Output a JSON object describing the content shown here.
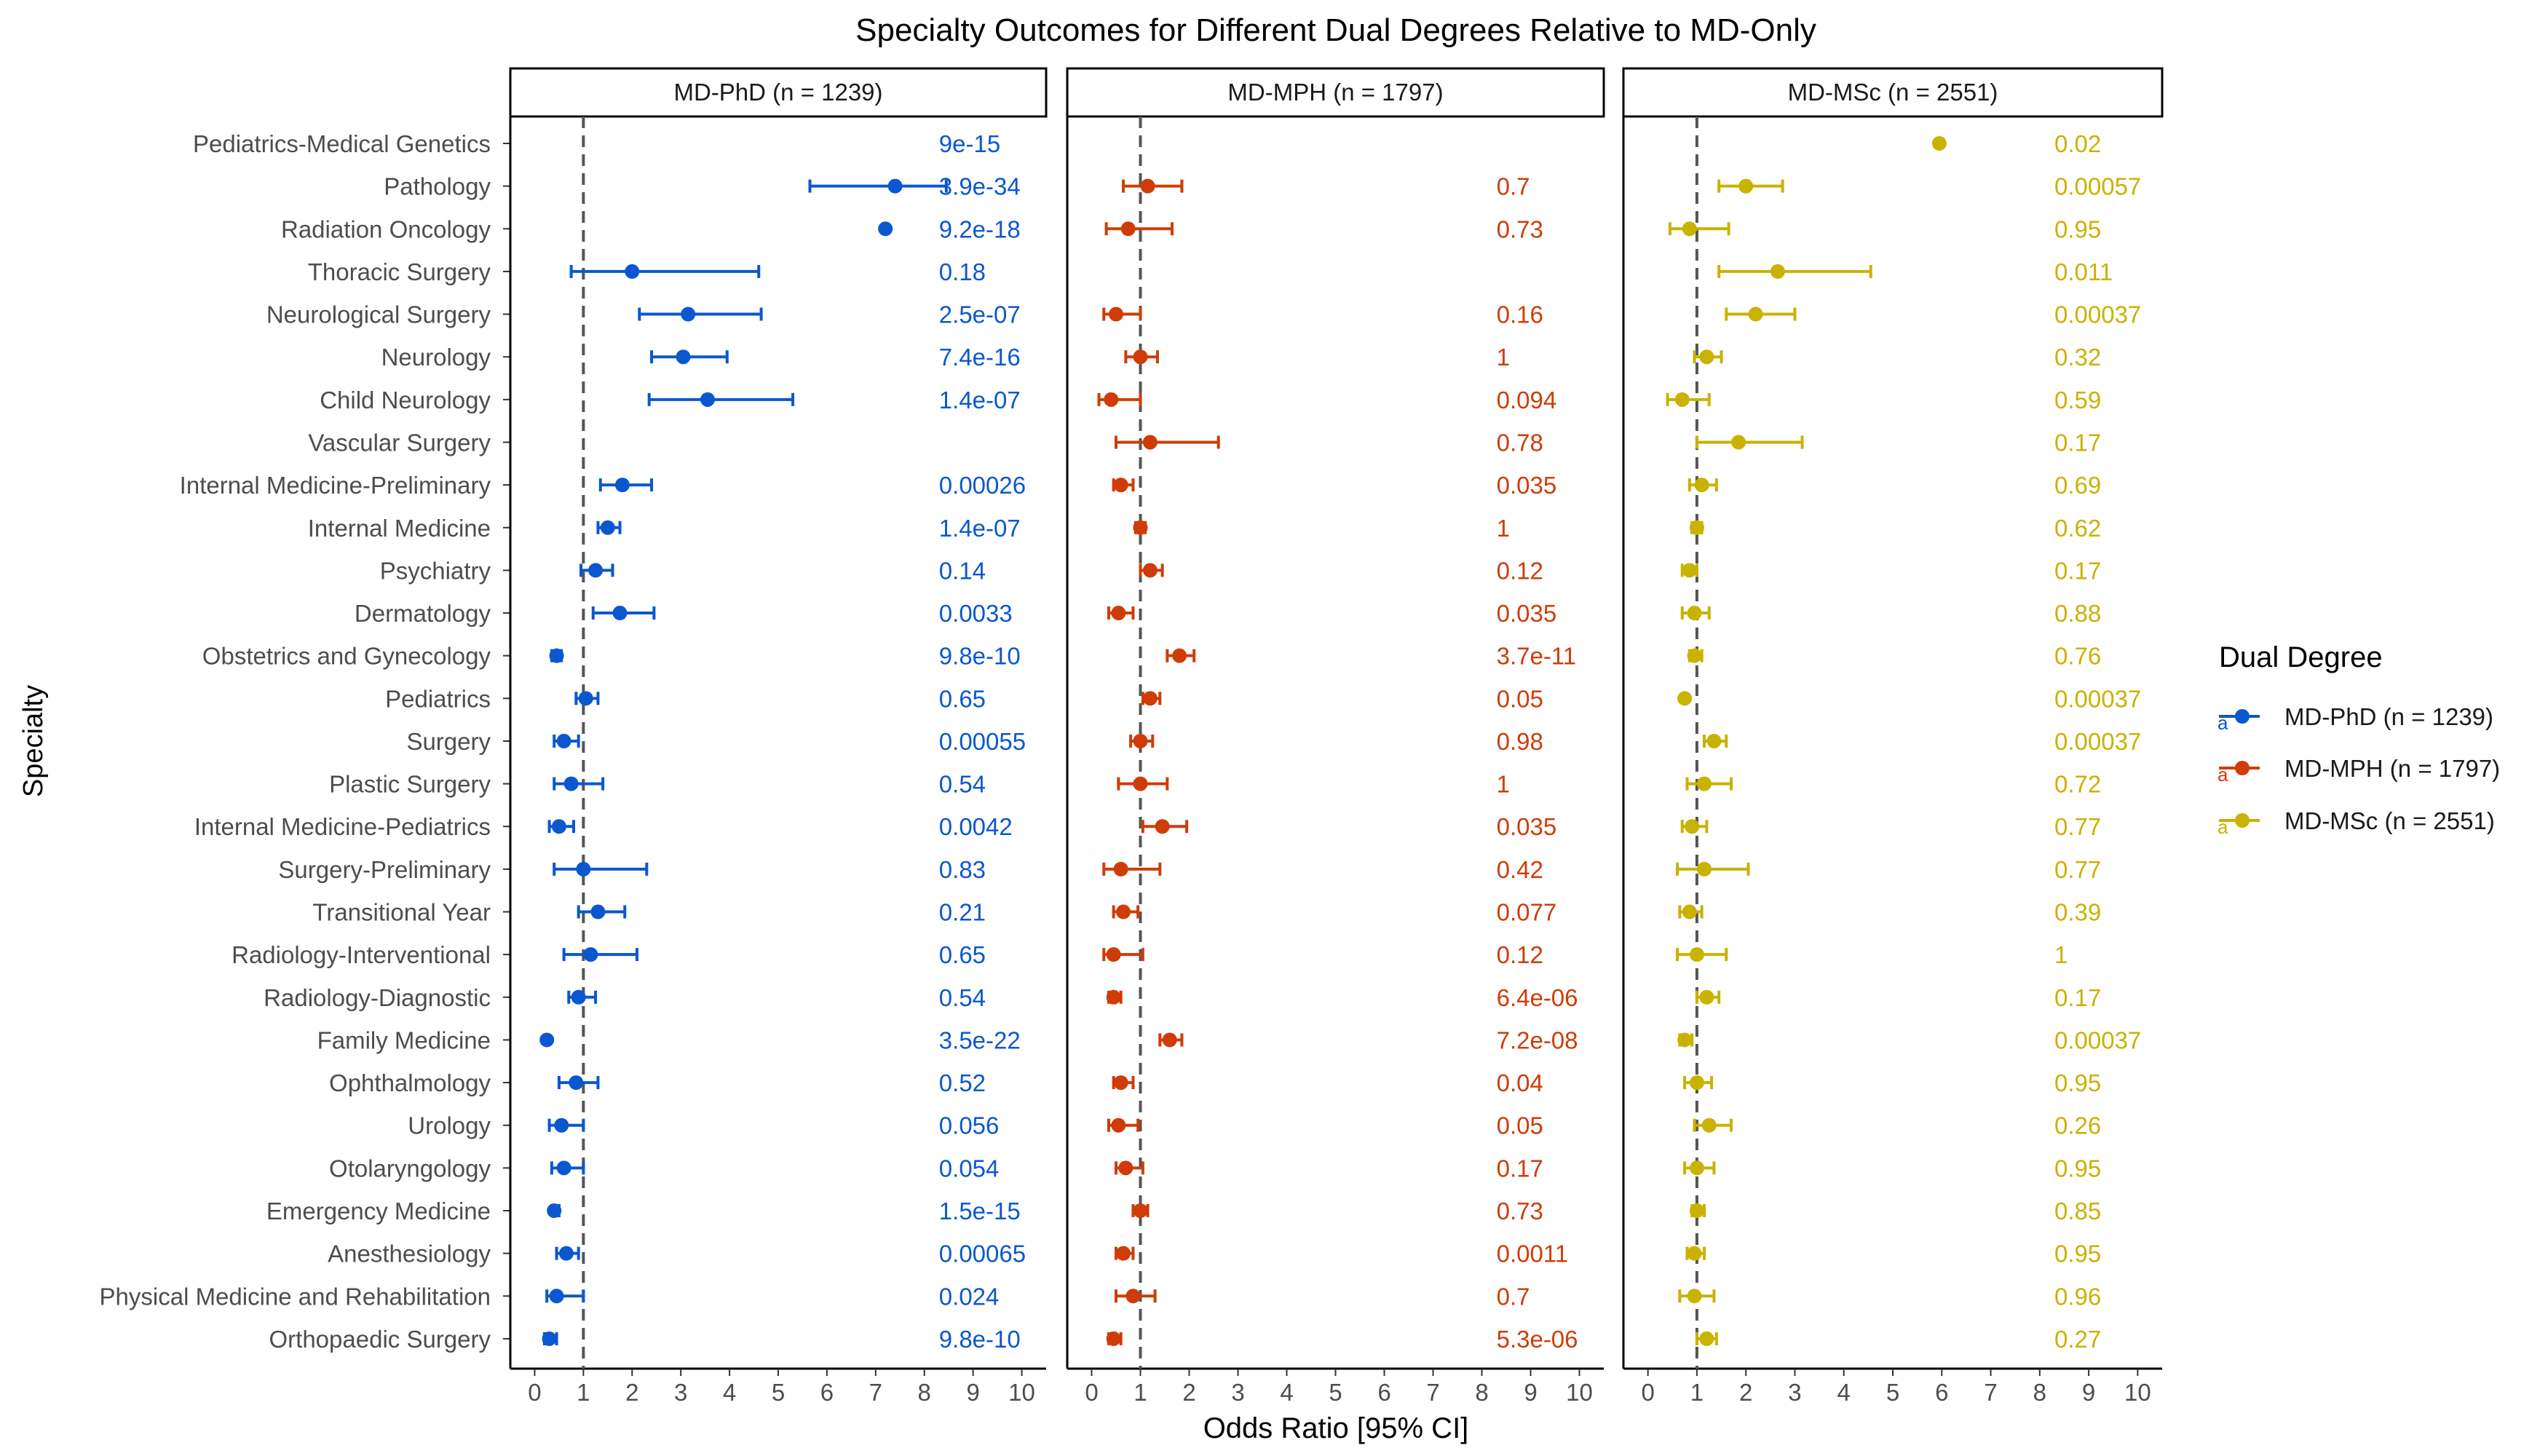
{
  "chart_data": {
    "type": "scatter",
    "subtype": "forest-plot",
    "title": "Specialty Outcomes for Different Dual Degrees Relative to MD-Only",
    "xlabel": "Odds Ratio [95% CI]",
    "ylabel": "Specialty",
    "xlim": [
      -0.5,
      10.5
    ],
    "x_ticks": [
      0,
      1,
      2,
      3,
      4,
      5,
      6,
      7,
      8,
      9,
      10
    ],
    "reference_line": 1,
    "grid": false,
    "legend": {
      "title": "Dual Degree",
      "position": "right",
      "key_glyph": "a",
      "entries": [
        "MD-PhD (n = 1239)",
        "MD-MPH (n = 1797)",
        "MD-MSc (n = 2551)"
      ]
    },
    "categories": [
      "Pediatrics-Medical Genetics",
      "Pathology",
      "Radiation Oncology",
      "Thoracic Surgery",
      "Neurological Surgery",
      "Neurology",
      "Child Neurology",
      "Vascular Surgery",
      "Internal Medicine-Preliminary",
      "Internal Medicine",
      "Psychiatry",
      "Dermatology",
      "Obstetrics and Gynecology",
      "Pediatrics",
      "Surgery",
      "Plastic Surgery",
      "Internal Medicine-Pediatrics",
      "Surgery-Preliminary",
      "Transitional Year",
      "Radiology-Interventional",
      "Radiology-Diagnostic",
      "Family Medicine",
      "Ophthalmology",
      "Urology",
      "Otolaryngology",
      "Emergency Medicine",
      "Anesthesiology",
      "Physical Medicine and Rehabilitation",
      "Orthopaedic Surgery"
    ],
    "series": [
      {
        "name": "MD-PhD (n = 1239)",
        "color": "#0b57d0",
        "or": [
          null,
          7.4,
          7.2,
          2.0,
          3.15,
          3.05,
          3.55,
          null,
          1.8,
          1.5,
          1.25,
          1.75,
          0.45,
          1.05,
          0.6,
          0.75,
          0.5,
          1.0,
          1.3,
          1.15,
          0.9,
          0.25,
          0.85,
          0.55,
          0.6,
          0.4,
          0.65,
          0.45,
          0.3
        ],
        "lo": [
          null,
          5.65,
          null,
          0.75,
          2.15,
          2.4,
          2.35,
          null,
          1.35,
          1.3,
          0.95,
          1.2,
          0.35,
          0.85,
          0.4,
          0.4,
          0.3,
          0.4,
          0.9,
          0.6,
          0.7,
          null,
          0.5,
          0.3,
          0.35,
          0.35,
          0.45,
          0.25,
          0.2
        ],
        "hi": [
          null,
          8.45,
          null,
          4.6,
          4.65,
          3.95,
          5.3,
          null,
          2.4,
          1.75,
          1.6,
          2.45,
          0.55,
          1.3,
          0.9,
          1.4,
          0.8,
          2.3,
          1.85,
          2.1,
          1.25,
          null,
          1.3,
          1.0,
          1.0,
          0.5,
          0.9,
          1.0,
          0.45
        ],
        "p": [
          "9e-15",
          "3.9e-34",
          "9.2e-18",
          "0.18",
          "2.5e-07",
          "7.4e-16",
          "1.4e-07",
          "",
          "0.00026",
          "1.4e-07",
          "0.14",
          "0.0033",
          "9.8e-10",
          "0.65",
          "0.00055",
          "0.54",
          "0.0042",
          "0.83",
          "0.21",
          "0.65",
          "0.54",
          "3.5e-22",
          "0.52",
          "0.056",
          "0.054",
          "1.5e-15",
          "0.00065",
          "0.024",
          "9.8e-10"
        ]
      },
      {
        "name": "MD-MPH (n = 1797)",
        "color": "#cf3c07",
        "or": [
          null,
          1.15,
          0.75,
          null,
          0.5,
          1.0,
          0.4,
          1.2,
          0.6,
          1.0,
          1.2,
          0.55,
          1.8,
          1.2,
          1.0,
          1.0,
          1.45,
          0.6,
          0.65,
          0.45,
          0.45,
          1.6,
          0.6,
          0.55,
          0.7,
          1.0,
          0.65,
          0.85,
          0.45
        ],
        "lo": [
          null,
          0.65,
          0.3,
          null,
          0.25,
          0.7,
          0.15,
          0.5,
          0.45,
          0.9,
          1.0,
          0.35,
          1.55,
          1.05,
          0.8,
          0.55,
          1.05,
          0.25,
          0.45,
          0.25,
          0.35,
          1.4,
          0.45,
          0.35,
          0.5,
          0.85,
          0.5,
          0.5,
          0.35
        ],
        "hi": [
          null,
          1.85,
          1.65,
          null,
          1.0,
          1.35,
          1.0,
          2.6,
          0.85,
          1.1,
          1.45,
          0.85,
          2.1,
          1.4,
          1.25,
          1.55,
          1.95,
          1.4,
          0.95,
          1.05,
          0.6,
          1.85,
          0.85,
          0.95,
          1.05,
          1.15,
          0.85,
          1.3,
          0.6
        ],
        "p": [
          "",
          "0.7",
          "0.73",
          "",
          "0.16",
          "1",
          "0.094",
          "0.78",
          "0.035",
          "1",
          "0.12",
          "0.035",
          "3.7e-11",
          "0.05",
          "0.98",
          "1",
          "0.035",
          "0.42",
          "0.077",
          "0.12",
          "6.4e-06",
          "7.2e-08",
          "0.04",
          "0.05",
          "0.17",
          "0.73",
          "0.0011",
          "0.7",
          "5.3e-06"
        ]
      },
      {
        "name": "MD-MSc (n = 2551)",
        "color": "#c9b200",
        "or": [
          5.95,
          2.0,
          0.85,
          2.65,
          2.2,
          1.2,
          0.7,
          1.85,
          1.1,
          1.0,
          0.85,
          0.95,
          0.95,
          0.75,
          1.35,
          1.15,
          0.9,
          1.15,
          0.85,
          1.0,
          1.2,
          0.75,
          1.0,
          1.25,
          1.0,
          1.0,
          0.95,
          0.95,
          1.2
        ],
        "lo": [
          null,
          1.45,
          0.45,
          1.45,
          1.6,
          0.95,
          0.4,
          1.0,
          0.85,
          0.9,
          0.7,
          0.7,
          0.85,
          null,
          1.15,
          0.8,
          0.7,
          0.6,
          0.65,
          0.6,
          1.0,
          0.65,
          0.75,
          0.95,
          0.75,
          0.9,
          0.8,
          0.65,
          1.0
        ],
        "hi": [
          null,
          2.75,
          1.65,
          4.55,
          3.0,
          1.5,
          1.25,
          3.15,
          1.4,
          1.1,
          1.0,
          1.25,
          1.1,
          null,
          1.6,
          1.7,
          1.2,
          2.05,
          1.1,
          1.6,
          1.45,
          0.9,
          1.3,
          1.7,
          1.35,
          1.15,
          1.15,
          1.35,
          1.4
        ],
        "p": [
          "0.02",
          "0.00057",
          "0.95",
          "0.011",
          "0.00037",
          "0.32",
          "0.59",
          "0.17",
          "0.69",
          "0.62",
          "0.17",
          "0.88",
          "0.76",
          "0.00037",
          "0.00037",
          "0.72",
          "0.77",
          "0.77",
          "0.39",
          "1",
          "0.17",
          "0.00037",
          "0.95",
          "0.26",
          "0.95",
          "0.85",
          "0.95",
          "0.96",
          "0.27"
        ]
      }
    ],
    "p_value_label_x": 8.3
  }
}
